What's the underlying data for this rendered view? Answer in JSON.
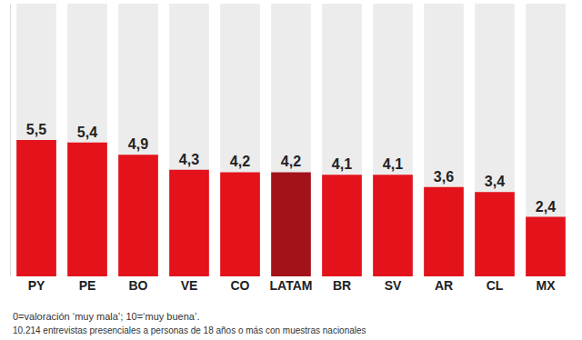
{
  "chart_data": {
    "type": "bar",
    "categories": [
      "PY",
      "PE",
      "BO",
      "VE",
      "CO",
      "LATAM",
      "BR",
      "SV",
      "AR",
      "CL",
      "MX"
    ],
    "values": [
      5.5,
      5.4,
      4.9,
      4.3,
      4.2,
      4.2,
      4.1,
      4.1,
      3.6,
      3.4,
      2.4
    ],
    "value_labels": [
      "5,5",
      "5,4",
      "4,9",
      "4,3",
      "4,2",
      "4,2",
      "4,1",
      "4,1",
      "3,6",
      "3,4",
      "2,4"
    ],
    "colors": [
      "#e3121b",
      "#e3121b",
      "#e3121b",
      "#e3121b",
      "#e3121b",
      "#a3121a",
      "#e3121b",
      "#e3121b",
      "#e3121b",
      "#e3121b",
      "#e3121b"
    ],
    "ylim": [
      0,
      11
    ],
    "yticks": [],
    "tick_labels": "x",
    "grid": false,
    "data_labels": true,
    "annotations": [
      "0=valoración ‘muy mala’; 10=‘muy buena’.",
      "10.214 entrevistas presenciales a personas de 18 años o más con muestras nacionales"
    ]
  }
}
